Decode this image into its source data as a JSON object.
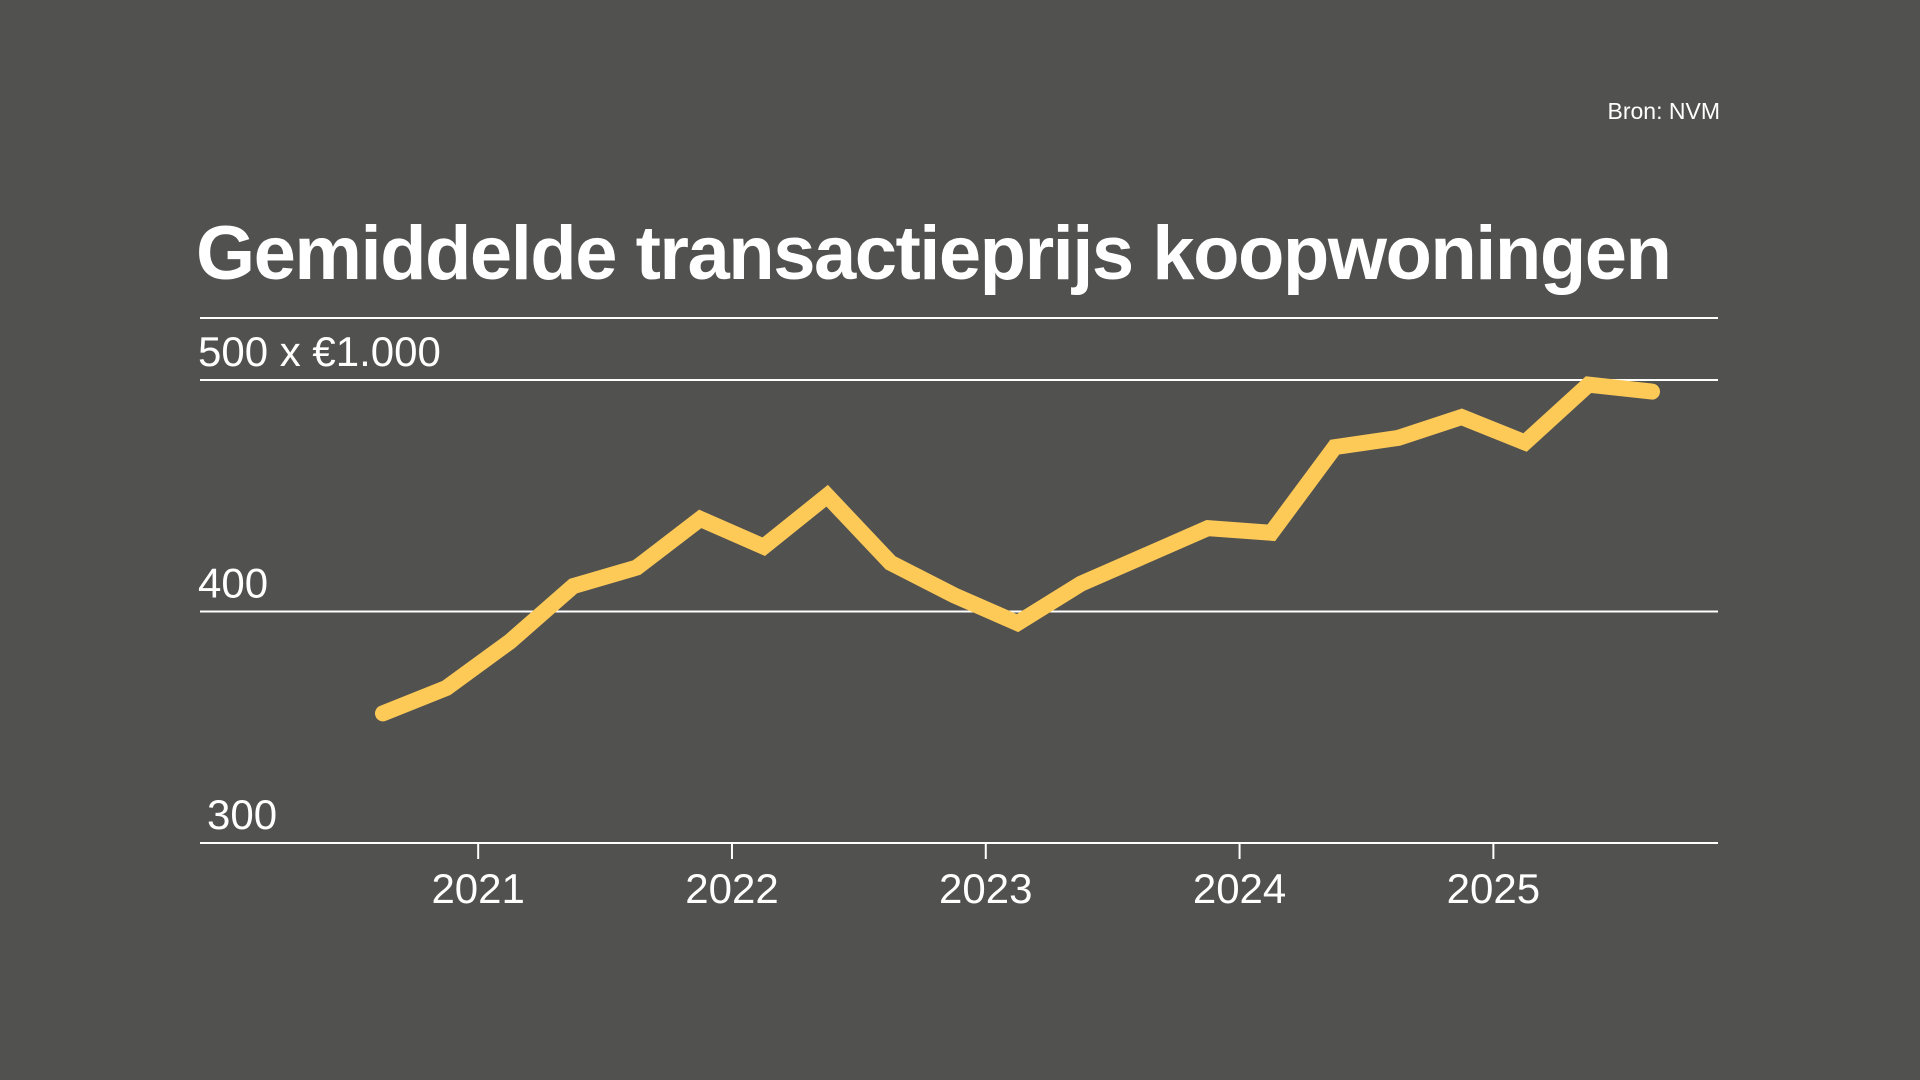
{
  "source": "Bron: NVM",
  "title": "Gemiddelde transactieprijs koopwoningen",
  "chart_data": {
    "type": "line",
    "title": "Gemiddelde transactieprijs koopwoningen",
    "ylabel": "500 x €1.000",
    "unit": "x €1.000",
    "ylim": [
      300,
      500
    ],
    "yticks": [
      300,
      400,
      500
    ],
    "ytick_labels": [
      "300",
      "400",
      "500 x €1.000"
    ],
    "xticks": [
      "2021",
      "2022",
      "2023",
      "2024",
      "2025"
    ],
    "x": [
      "2020-Q3",
      "2020-Q4",
      "2021-Q1",
      "2021-Q2",
      "2021-Q3",
      "2021-Q4",
      "2022-Q1",
      "2022-Q2",
      "2022-Q3",
      "2022-Q4",
      "2023-Q1",
      "2023-Q2",
      "2023-Q3",
      "2023-Q4",
      "2024-Q1",
      "2024-Q2",
      "2024-Q3",
      "2024-Q4",
      "2025-Q1",
      "2025-Q2",
      "2025-Q3"
    ],
    "series": [
      {
        "name": "Gemiddelde transactieprijs",
        "color": "#FECA57",
        "values": [
          356,
          367,
          387,
          411,
          419,
          440,
          428,
          450,
          421,
          407,
          395,
          412,
          424,
          436,
          434,
          471,
          475,
          484,
          473,
          498,
          495
        ]
      }
    ],
    "grid": true,
    "legend": "none"
  }
}
